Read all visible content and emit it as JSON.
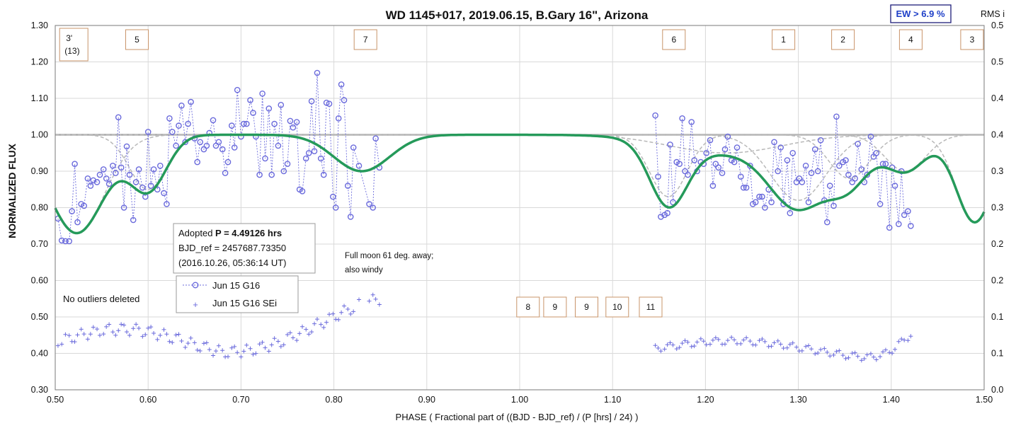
{
  "chart_data": {
    "type": "scatter",
    "title": "WD 1145+017, 2019.06.15, B.Gary 16\", Arizona",
    "xlabel": "PHASE ( Fractional part of ((BJD - BJD_ref) / (P [hrs] / 24) )",
    "ylabel": "NORMALIZED FLUX",
    "y2label": "RMS i",
    "xlim": [
      0.5,
      1.5
    ],
    "ylim": [
      0.3,
      1.3
    ],
    "y2lim": [
      0.0,
      0.5
    ],
    "x_ticks": [
      "0.50",
      "0.60",
      "0.70",
      "0.80",
      "0.90",
      "1.00",
      "1.10",
      "1.20",
      "1.30",
      "1.40",
      "1.50"
    ],
    "y_ticks": [
      "0.30",
      "0.40",
      "0.50",
      "0.60",
      "0.70",
      "0.80",
      "0.90",
      "1.00",
      "1.10",
      "1.20",
      "1.30"
    ],
    "y2_ticks": [
      "0.0",
      "0.1",
      "0.1",
      "0.2",
      "0.2",
      "0.3",
      "0.3",
      "0.4",
      "0.4",
      "0.5",
      "0.5"
    ],
    "grid": true,
    "ew_label": "EW > 6.9 %",
    "dip_labels": [
      {
        "text": "3'",
        "sub": "(13)",
        "x": 0.52
      },
      {
        "text": "5",
        "x": 0.588
      },
      {
        "text": "7",
        "x": 0.834
      },
      {
        "text": "6",
        "x": 1.166
      },
      {
        "text": "1",
        "x": 1.284
      },
      {
        "text": "2",
        "x": 1.348
      },
      {
        "text": "4",
        "x": 1.421
      },
      {
        "text": "3",
        "x": 1.487
      },
      {
        "text": "8",
        "x": 1.009
      },
      {
        "text": "9",
        "x": 1.038
      },
      {
        "text": "9",
        "x": 1.072
      },
      {
        "text": "10",
        "x": 1.105
      },
      {
        "text": "11",
        "x": 1.141
      }
    ],
    "adopted": {
      "line1_prefix": "Adopted ",
      "line1_bold": "P = 4.49126 hrs",
      "line2": "BJD_ref = 2457687.73350",
      "line3": "(2016.10.26, 05:36:14 UT)"
    },
    "note_moon": [
      "Full moon 61 deg. away;",
      "also windy"
    ],
    "note_outliers": "No outliers deleted",
    "legend": [
      "Jun 15 G16",
      "Jun 15 G16 SEi"
    ],
    "colors": {
      "data": "#6b6bdc",
      "model": "#259a5a",
      "dips": "#b8b8b8",
      "baseline": "#a9a9a9",
      "box": "#c8946a"
    },
    "dips": [
      {
        "center": 0.523,
        "depth": 0.27,
        "width": 0.03
      },
      {
        "center": 0.6,
        "depth": 0.15,
        "width": 0.02
      },
      {
        "center": 0.83,
        "depth": 0.1,
        "width": 0.03
      },
      {
        "center": 1.16,
        "depth": 0.17,
        "width": 0.02
      },
      {
        "center": 1.222,
        "depth": 0.05,
        "width": 0.06
      },
      {
        "center": 1.3,
        "depth": 0.18,
        "width": 0.03
      },
      {
        "center": 1.355,
        "depth": 0.12,
        "width": 0.022
      },
      {
        "center": 1.415,
        "depth": 0.1,
        "width": 0.022
      },
      {
        "center": 1.49,
        "depth": 0.24,
        "width": 0.02
      }
    ],
    "series": [
      {
        "name": "Jun 15 G16",
        "points": [
          [
            0.503,
            0.77
          ],
          [
            0.507,
            0.71
          ],
          [
            0.511,
            0.708
          ],
          [
            0.515,
            0.708
          ],
          [
            0.518,
            0.79
          ],
          [
            0.521,
            0.92
          ],
          [
            0.524,
            0.76
          ],
          [
            0.528,
            0.81
          ],
          [
            0.531,
            0.805
          ],
          [
            0.535,
            0.88
          ],
          [
            0.538,
            0.86
          ],
          [
            0.541,
            0.875
          ],
          [
            0.545,
            0.87
          ],
          [
            0.548,
            0.89
          ],
          [
            0.552,
            0.905
          ],
          [
            0.555,
            0.88
          ],
          [
            0.558,
            0.865
          ],
          [
            0.562,
            0.915
          ],
          [
            0.565,
            0.895
          ],
          [
            0.568,
            1.048
          ],
          [
            0.571,
            0.91
          ],
          [
            0.574,
            0.8
          ],
          [
            0.577,
            0.968
          ],
          [
            0.58,
            0.89
          ],
          [
            0.584,
            0.766
          ],
          [
            0.587,
            0.87
          ],
          [
            0.59,
            0.905
          ],
          [
            0.594,
            0.855
          ],
          [
            0.597,
            0.83
          ],
          [
            0.6,
            1.008
          ],
          [
            0.603,
            0.86
          ],
          [
            0.606,
            0.905
          ],
          [
            0.61,
            0.85
          ],
          [
            0.613,
            0.915
          ],
          [
            0.617,
            0.84
          ],
          [
            0.62,
            0.81
          ],
          [
            0.623,
            1.045
          ],
          [
            0.626,
            1.008
          ],
          [
            0.63,
            0.97
          ],
          [
            0.633,
            1.025
          ],
          [
            0.636,
            1.08
          ],
          [
            0.64,
            0.98
          ],
          [
            0.643,
            1.03
          ],
          [
            0.646,
            1.09
          ],
          [
            0.65,
            0.99
          ],
          [
            0.653,
            0.925
          ],
          [
            0.656,
            0.98
          ],
          [
            0.66,
            0.96
          ],
          [
            0.663,
            0.97
          ],
          [
            0.666,
            1.005
          ],
          [
            0.67,
            1.04
          ],
          [
            0.673,
            0.97
          ],
          [
            0.676,
            0.98
          ],
          [
            0.68,
            0.96
          ],
          [
            0.683,
            0.895
          ],
          [
            0.686,
            0.925
          ],
          [
            0.69,
            1.025
          ],
          [
            0.693,
            0.965
          ],
          [
            0.696,
            1.123
          ],
          [
            0.7,
            0.995
          ],
          [
            0.703,
            1.03
          ],
          [
            0.706,
            1.03
          ],
          [
            0.71,
            1.095
          ],
          [
            0.713,
            1.06
          ],
          [
            0.716,
            0.995
          ],
          [
            0.72,
            0.89
          ],
          [
            0.723,
            1.113
          ],
          [
            0.726,
            0.935
          ],
          [
            0.73,
            1.072
          ],
          [
            0.733,
            0.89
          ],
          [
            0.736,
            1.03
          ],
          [
            0.74,
            0.97
          ],
          [
            0.743,
            1.082
          ],
          [
            0.746,
            0.9
          ],
          [
            0.75,
            0.92
          ],
          [
            0.753,
            1.038
          ],
          [
            0.756,
            1.02
          ],
          [
            0.76,
            1.035
          ],
          [
            0.763,
            0.85
          ],
          [
            0.766,
            0.845
          ],
          [
            0.77,
            0.935
          ],
          [
            0.773,
            0.95
          ],
          [
            0.776,
            1.092
          ],
          [
            0.779,
            0.955
          ],
          [
            0.782,
            1.17
          ],
          [
            0.786,
            0.935
          ],
          [
            0.789,
            0.89
          ],
          [
            0.792,
            1.088
          ],
          [
            0.795,
            1.085
          ],
          [
            0.799,
            0.83
          ],
          [
            0.802,
            0.8
          ],
          [
            0.805,
            1.045
          ],
          [
            0.808,
            1.138
          ],
          [
            0.811,
            1.095
          ],
          [
            0.815,
            0.86
          ],
          [
            0.818,
            0.775
          ],
          [
            0.821,
            0.965
          ],
          [
            0.827,
            0.915
          ],
          [
            0.838,
            0.81
          ],
          [
            0.842,
            0.8
          ],
          [
            0.845,
            0.99
          ],
          [
            0.849,
            0.91
          ],
          [
            1.146,
            1.053
          ],
          [
            1.149,
            0.885
          ],
          [
            1.152,
            0.775
          ],
          [
            1.156,
            0.78
          ],
          [
            1.159,
            0.785
          ],
          [
            1.162,
            0.973
          ],
          [
            1.165,
            0.815
          ],
          [
            1.169,
            0.925
          ],
          [
            1.172,
            0.92
          ],
          [
            1.175,
            1.045
          ],
          [
            1.178,
            0.9
          ],
          [
            1.181,
            0.89
          ],
          [
            1.185,
            1.035
          ],
          [
            1.188,
            0.93
          ],
          [
            1.191,
            0.9
          ],
          [
            1.195,
            0.925
          ],
          [
            1.198,
            0.92
          ],
          [
            1.201,
            0.95
          ],
          [
            1.205,
            0.985
          ],
          [
            1.208,
            0.86
          ],
          [
            1.211,
            0.92
          ],
          [
            1.214,
            0.91
          ],
          [
            1.218,
            0.895
          ],
          [
            1.221,
            0.96
          ],
          [
            1.224,
            0.995
          ],
          [
            1.228,
            0.93
          ],
          [
            1.231,
            0.925
          ],
          [
            1.234,
            0.965
          ],
          [
            1.238,
            0.885
          ],
          [
            1.241,
            0.855
          ],
          [
            1.244,
            0.855
          ],
          [
            1.248,
            0.915
          ],
          [
            1.251,
            0.81
          ],
          [
            1.254,
            0.815
          ],
          [
            1.258,
            0.83
          ],
          [
            1.261,
            0.83
          ],
          [
            1.264,
            0.8
          ],
          [
            1.268,
            0.85
          ],
          [
            1.271,
            0.815
          ],
          [
            1.274,
            0.98
          ],
          [
            1.278,
            0.9
          ],
          [
            1.281,
            0.965
          ],
          [
            1.284,
            0.81
          ],
          [
            1.288,
            0.93
          ],
          [
            1.291,
            0.785
          ],
          [
            1.294,
            0.95
          ],
          [
            1.298,
            0.87
          ],
          [
            1.301,
            0.88
          ],
          [
            1.304,
            0.87
          ],
          [
            1.308,
            0.915
          ],
          [
            1.311,
            0.815
          ],
          [
            1.314,
            0.895
          ],
          [
            1.318,
            0.96
          ],
          [
            1.321,
            0.9
          ],
          [
            1.324,
            0.985
          ],
          [
            1.328,
            0.82
          ],
          [
            1.331,
            0.76
          ],
          [
            1.334,
            0.86
          ],
          [
            1.338,
            0.805
          ],
          [
            1.341,
            1.05
          ],
          [
            1.344,
            0.915
          ],
          [
            1.348,
            0.925
          ],
          [
            1.351,
            0.93
          ],
          [
            1.354,
            0.89
          ],
          [
            1.358,
            0.87
          ],
          [
            1.361,
            0.88
          ],
          [
            1.364,
            0.975
          ],
          [
            1.368,
            0.905
          ],
          [
            1.371,
            0.87
          ],
          [
            1.374,
            0.89
          ],
          [
            1.378,
            0.995
          ],
          [
            1.381,
            0.94
          ],
          [
            1.384,
            0.95
          ],
          [
            1.388,
            0.81
          ],
          [
            1.391,
            0.92
          ],
          [
            1.394,
            0.92
          ],
          [
            1.398,
            0.745
          ],
          [
            1.401,
            0.91
          ],
          [
            1.404,
            0.86
          ],
          [
            1.408,
            0.755
          ],
          [
            1.411,
            0.9
          ],
          [
            1.414,
            0.78
          ],
          [
            1.418,
            0.79
          ],
          [
            1.421,
            0.75
          ]
        ]
      },
      {
        "name": "Jun 15 G16 SEi",
        "y_axis": "right"
      }
    ]
  }
}
